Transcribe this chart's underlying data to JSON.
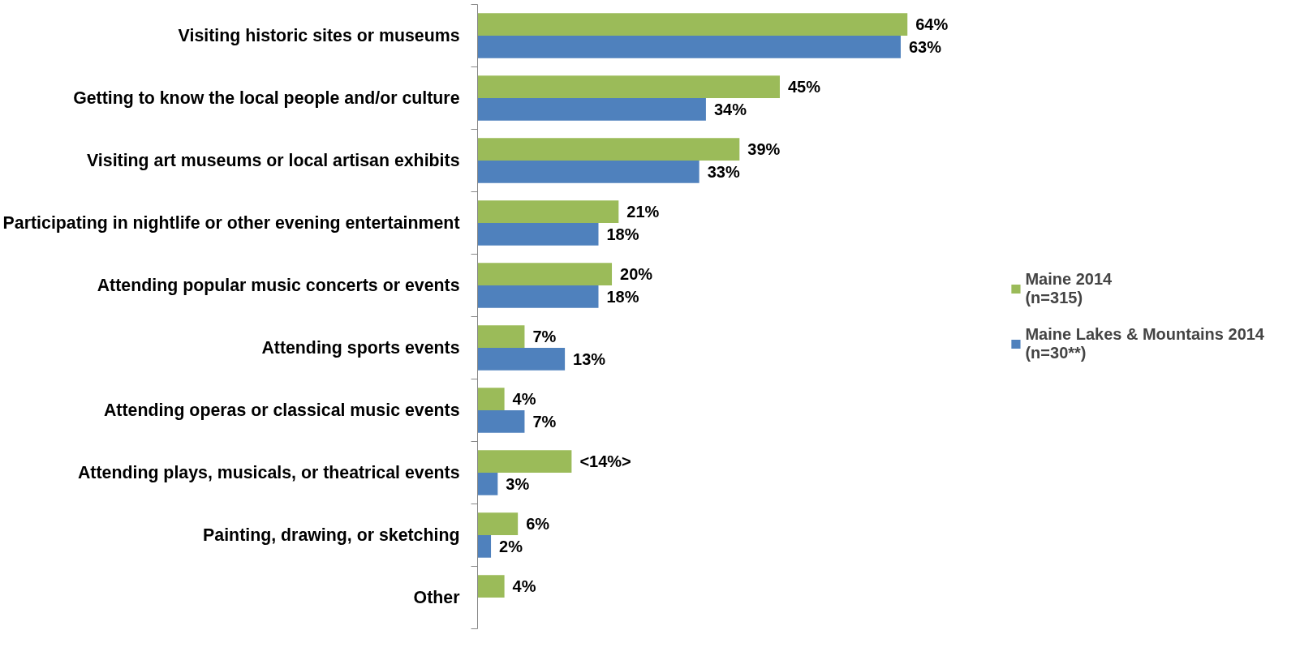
{
  "chart_data": {
    "type": "bar",
    "orientation": "horizontal",
    "categories": [
      "Visiting historic sites or museums",
      "Getting to know the local people and/or culture",
      "Visiting art museums or local artisan exhibits",
      "Participating in nightlife or other evening entertainment",
      "Attending popular music concerts or events",
      "Attending sports events",
      "Attending operas or classical music events",
      "Attending plays, musicals, or theatrical events",
      "Painting, drawing, or sketching",
      "Other"
    ],
    "series": [
      {
        "name": "Maine 2014\n(n=315)",
        "color": "#9bbb59",
        "values": [
          64,
          45,
          39,
          21,
          20,
          7,
          4,
          14,
          6,
          4
        ],
        "value_labels": [
          "64%",
          "45%",
          "39%",
          "21%",
          "20%",
          "7%",
          "4%",
          "<14%>",
          "6%",
          "4%"
        ]
      },
      {
        "name": "Maine Lakes & Mountains 2014\n(n=30**)",
        "color": "#4f81bd",
        "values": [
          63,
          34,
          33,
          18,
          18,
          13,
          7,
          3,
          2,
          null
        ],
        "value_labels": [
          "63%",
          "34%",
          "33%",
          "18%",
          "18%",
          "13%",
          "7%",
          "3%",
          "2%",
          null
        ]
      }
    ],
    "legend": "right",
    "grid": false
  }
}
